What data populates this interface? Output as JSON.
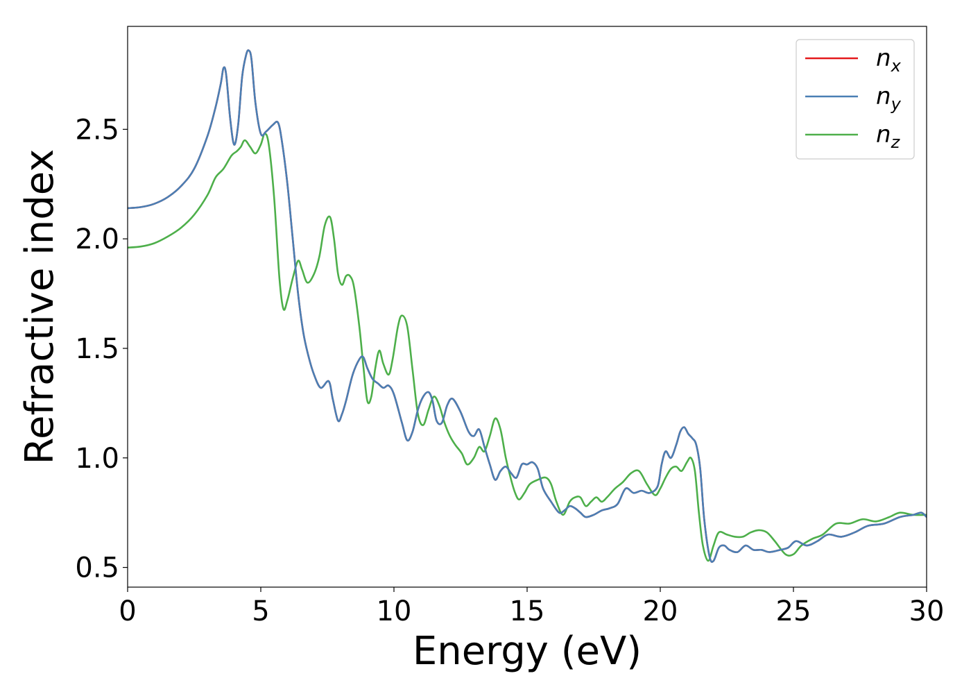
{
  "chart_data": {
    "type": "line",
    "xlabel": "Energy (eV)",
    "ylabel": "Refractive index",
    "xlim": [
      0,
      30
    ],
    "ylim": [
      0.41,
      2.97
    ],
    "xticks": [
      0,
      5,
      10,
      15,
      20,
      25,
      30
    ],
    "xtick_labels": [
      "0",
      "5",
      "10",
      "15",
      "20",
      "25",
      "30"
    ],
    "yticks": [
      0.5,
      1.0,
      1.5,
      2.0,
      2.5
    ],
    "ytick_labels": [
      "0.5",
      "1.0",
      "1.5",
      "2.0",
      "2.5"
    ],
    "grid": false,
    "legend_position": "top-right",
    "series": [
      {
        "name": "n_x",
        "legend_base": "n",
        "legend_sub": "x",
        "color": "#e41a1c",
        "x": [
          0,
          0.5,
          1,
          1.5,
          2,
          2.5,
          3,
          3.3,
          3.5,
          3.6,
          3.7,
          3.85,
          4.0,
          4.15,
          4.3,
          4.45,
          4.55,
          4.65,
          4.8,
          5.0,
          5.2,
          5.45,
          5.65,
          5.8,
          6.0,
          6.2,
          6.4,
          6.6,
          6.8,
          7.0,
          7.25,
          7.55,
          7.7,
          7.9,
          8.05,
          8.2,
          8.45,
          8.7,
          8.85,
          9.0,
          9.2,
          9.4,
          9.6,
          9.8,
          10.0,
          10.3,
          10.5,
          10.7,
          10.9,
          11.1,
          11.3,
          11.45,
          11.6,
          11.8,
          12.0,
          12.2,
          12.5,
          12.8,
          13.0,
          13.2,
          13.4,
          13.6,
          13.8,
          14.0,
          14.2,
          14.4,
          14.6,
          14.8,
          15.0,
          15.2,
          15.4,
          15.6,
          15.9,
          16.2,
          16.4,
          16.6,
          16.8,
          17.0,
          17.2,
          17.5,
          17.8,
          18.1,
          18.4,
          18.7,
          19.0,
          19.3,
          19.6,
          19.9,
          20.05,
          20.2,
          20.4,
          20.6,
          20.75,
          20.9,
          21.05,
          21.2,
          21.35,
          21.5,
          21.65,
          21.85,
          22.0,
          22.2,
          22.4,
          22.6,
          22.9,
          23.2,
          23.5,
          23.8,
          24.1,
          24.5,
          24.8,
          25.1,
          25.5,
          25.9,
          26.3,
          26.8,
          27.3,
          27.8,
          28.4,
          29.0,
          29.5,
          29.8,
          30.0
        ],
        "values": [
          2.14,
          2.145,
          2.16,
          2.19,
          2.24,
          2.32,
          2.47,
          2.6,
          2.71,
          2.78,
          2.75,
          2.55,
          2.43,
          2.52,
          2.74,
          2.84,
          2.86,
          2.82,
          2.62,
          2.48,
          2.49,
          2.52,
          2.53,
          2.44,
          2.25,
          2.0,
          1.75,
          1.57,
          1.46,
          1.38,
          1.32,
          1.35,
          1.27,
          1.17,
          1.2,
          1.26,
          1.38,
          1.45,
          1.46,
          1.41,
          1.36,
          1.34,
          1.32,
          1.33,
          1.29,
          1.16,
          1.08,
          1.12,
          1.22,
          1.28,
          1.3,
          1.26,
          1.17,
          1.16,
          1.24,
          1.27,
          1.21,
          1.12,
          1.1,
          1.13,
          1.05,
          0.97,
          0.9,
          0.94,
          0.96,
          0.93,
          0.91,
          0.97,
          0.97,
          0.98,
          0.95,
          0.86,
          0.8,
          0.75,
          0.76,
          0.78,
          0.77,
          0.75,
          0.73,
          0.74,
          0.76,
          0.77,
          0.79,
          0.86,
          0.84,
          0.85,
          0.84,
          0.87,
          0.97,
          1.03,
          1.0,
          1.06,
          1.12,
          1.14,
          1.11,
          1.09,
          1.06,
          0.95,
          0.72,
          0.55,
          0.53,
          0.59,
          0.6,
          0.58,
          0.57,
          0.6,
          0.58,
          0.58,
          0.57,
          0.58,
          0.59,
          0.62,
          0.6,
          0.62,
          0.65,
          0.64,
          0.66,
          0.69,
          0.7,
          0.73,
          0.74,
          0.75,
          0.73
        ]
      },
      {
        "name": "n_y",
        "legend_base": "n",
        "legend_sub": "y",
        "color": "#4a7fb4",
        "x": [
          0,
          0.5,
          1,
          1.5,
          2,
          2.5,
          3,
          3.3,
          3.5,
          3.6,
          3.7,
          3.85,
          4.0,
          4.15,
          4.3,
          4.45,
          4.55,
          4.65,
          4.8,
          5.0,
          5.2,
          5.45,
          5.65,
          5.8,
          6.0,
          6.2,
          6.4,
          6.6,
          6.8,
          7.0,
          7.25,
          7.55,
          7.7,
          7.9,
          8.05,
          8.2,
          8.45,
          8.7,
          8.85,
          9.0,
          9.2,
          9.4,
          9.6,
          9.8,
          10.0,
          10.3,
          10.5,
          10.7,
          10.9,
          11.1,
          11.3,
          11.45,
          11.6,
          11.8,
          12.0,
          12.2,
          12.5,
          12.8,
          13.0,
          13.2,
          13.4,
          13.6,
          13.8,
          14.0,
          14.2,
          14.4,
          14.6,
          14.8,
          15.0,
          15.2,
          15.4,
          15.6,
          15.9,
          16.2,
          16.4,
          16.6,
          16.8,
          17.0,
          17.2,
          17.5,
          17.8,
          18.1,
          18.4,
          18.7,
          19.0,
          19.3,
          19.6,
          19.9,
          20.05,
          20.2,
          20.4,
          20.6,
          20.75,
          20.9,
          21.05,
          21.2,
          21.35,
          21.5,
          21.65,
          21.85,
          22.0,
          22.2,
          22.4,
          22.6,
          22.9,
          23.2,
          23.5,
          23.8,
          24.1,
          24.5,
          24.8,
          25.1,
          25.5,
          25.9,
          26.3,
          26.8,
          27.3,
          27.8,
          28.4,
          29.0,
          29.5,
          29.8,
          30.0
        ],
        "values": [
          2.14,
          2.145,
          2.16,
          2.19,
          2.24,
          2.32,
          2.47,
          2.6,
          2.71,
          2.78,
          2.75,
          2.55,
          2.43,
          2.52,
          2.74,
          2.84,
          2.86,
          2.82,
          2.62,
          2.48,
          2.49,
          2.52,
          2.53,
          2.44,
          2.25,
          2.0,
          1.75,
          1.57,
          1.46,
          1.38,
          1.32,
          1.35,
          1.27,
          1.17,
          1.2,
          1.26,
          1.38,
          1.45,
          1.46,
          1.41,
          1.36,
          1.34,
          1.32,
          1.33,
          1.29,
          1.16,
          1.08,
          1.12,
          1.22,
          1.28,
          1.3,
          1.26,
          1.17,
          1.16,
          1.24,
          1.27,
          1.21,
          1.12,
          1.1,
          1.13,
          1.05,
          0.97,
          0.9,
          0.94,
          0.96,
          0.93,
          0.91,
          0.97,
          0.97,
          0.98,
          0.95,
          0.86,
          0.8,
          0.75,
          0.76,
          0.78,
          0.77,
          0.75,
          0.73,
          0.74,
          0.76,
          0.77,
          0.79,
          0.86,
          0.84,
          0.85,
          0.84,
          0.87,
          0.97,
          1.03,
          1.0,
          1.06,
          1.12,
          1.14,
          1.11,
          1.09,
          1.06,
          0.95,
          0.72,
          0.55,
          0.53,
          0.59,
          0.6,
          0.58,
          0.57,
          0.6,
          0.58,
          0.58,
          0.57,
          0.58,
          0.59,
          0.62,
          0.6,
          0.62,
          0.65,
          0.64,
          0.66,
          0.69,
          0.7,
          0.73,
          0.74,
          0.75,
          0.73
        ]
      },
      {
        "name": "n_z",
        "legend_base": "n",
        "legend_sub": "z",
        "color": "#4daf4a",
        "x": [
          0,
          0.5,
          1,
          1.5,
          2,
          2.5,
          3,
          3.3,
          3.6,
          3.9,
          4.1,
          4.25,
          4.4,
          4.6,
          4.8,
          5.0,
          5.15,
          5.3,
          5.5,
          5.7,
          5.85,
          6.0,
          6.2,
          6.4,
          6.55,
          6.75,
          7.0,
          7.2,
          7.4,
          7.6,
          7.75,
          7.9,
          8.05,
          8.2,
          8.35,
          8.5,
          8.7,
          8.85,
          9.0,
          9.15,
          9.3,
          9.45,
          9.6,
          9.8,
          9.95,
          10.15,
          10.3,
          10.5,
          10.7,
          10.9,
          11.1,
          11.3,
          11.5,
          11.7,
          11.9,
          12.1,
          12.3,
          12.55,
          12.75,
          13.0,
          13.2,
          13.4,
          13.6,
          13.8,
          14.0,
          14.2,
          14.4,
          14.55,
          14.7,
          14.9,
          15.1,
          15.4,
          15.7,
          15.9,
          16.1,
          16.35,
          16.6,
          16.8,
          17.0,
          17.2,
          17.4,
          17.6,
          17.8,
          18.0,
          18.3,
          18.6,
          18.9,
          19.2,
          19.5,
          19.8,
          20.0,
          20.2,
          20.4,
          20.6,
          20.8,
          21.0,
          21.15,
          21.3,
          21.45,
          21.6,
          21.8,
          22.0,
          22.2,
          22.5,
          22.8,
          23.1,
          23.4,
          23.7,
          24.0,
          24.3,
          24.7,
          25.0,
          25.3,
          25.7,
          26.1,
          26.6,
          27.1,
          27.6,
          28.1,
          28.6,
          29.0,
          29.5,
          30.0
        ],
        "values": [
          1.96,
          1.965,
          1.98,
          2.01,
          2.05,
          2.11,
          2.2,
          2.28,
          2.32,
          2.38,
          2.4,
          2.42,
          2.45,
          2.42,
          2.39,
          2.43,
          2.48,
          2.43,
          2.19,
          1.82,
          1.68,
          1.72,
          1.82,
          1.9,
          1.86,
          1.8,
          1.84,
          1.92,
          2.06,
          2.1,
          2.0,
          1.84,
          1.79,
          1.83,
          1.83,
          1.78,
          1.6,
          1.42,
          1.26,
          1.28,
          1.41,
          1.49,
          1.43,
          1.38,
          1.45,
          1.6,
          1.65,
          1.6,
          1.4,
          1.2,
          1.15,
          1.22,
          1.28,
          1.24,
          1.16,
          1.1,
          1.06,
          1.02,
          0.97,
          1.0,
          1.05,
          1.03,
          1.1,
          1.18,
          1.13,
          1.0,
          0.9,
          0.84,
          0.81,
          0.84,
          0.88,
          0.9,
          0.91,
          0.88,
          0.8,
          0.74,
          0.8,
          0.82,
          0.82,
          0.78,
          0.8,
          0.82,
          0.8,
          0.82,
          0.86,
          0.89,
          0.93,
          0.94,
          0.88,
          0.83,
          0.86,
          0.91,
          0.95,
          0.96,
          0.94,
          0.98,
          1.0,
          0.94,
          0.75,
          0.6,
          0.53,
          0.6,
          0.66,
          0.65,
          0.64,
          0.64,
          0.66,
          0.67,
          0.66,
          0.62,
          0.56,
          0.56,
          0.6,
          0.63,
          0.65,
          0.7,
          0.7,
          0.72,
          0.71,
          0.73,
          0.75,
          0.74,
          0.74
        ]
      }
    ]
  }
}
